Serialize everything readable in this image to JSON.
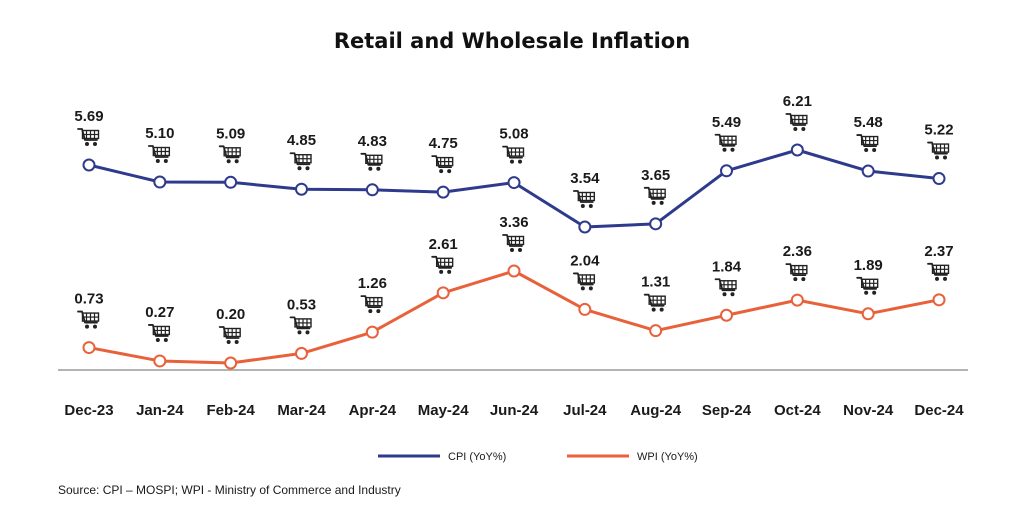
{
  "chart_data": {
    "type": "line",
    "title": "Retail and Wholesale Inflation",
    "categories": [
      "Dec-23",
      "Jan-24",
      "Feb-24",
      "Mar-24",
      "Apr-24",
      "May-24",
      "Jun-24",
      "Jul-24",
      "Aug-24",
      "Sep-24",
      "Oct-24",
      "Nov-24",
      "Dec-24"
    ],
    "series": [
      {
        "name": "CPI (YoY%)",
        "color": "#2e3a8c",
        "values": [
          5.69,
          5.1,
          5.09,
          4.85,
          4.83,
          4.75,
          5.08,
          3.54,
          3.65,
          5.49,
          6.21,
          5.48,
          5.22
        ],
        "labels": [
          "5.69",
          "5.10",
          "5.09",
          "4.85",
          "4.83",
          "4.75",
          "5.08",
          "3.54",
          "3.65",
          "5.49",
          "6.21",
          "5.48",
          "5.22"
        ]
      },
      {
        "name": "WPI (YoY%)",
        "color": "#e8613a",
        "values": [
          0.73,
          0.27,
          0.2,
          0.53,
          1.26,
          2.61,
          3.36,
          2.04,
          1.31,
          1.84,
          2.36,
          1.89,
          2.37
        ],
        "labels": [
          "0.73",
          "0.27",
          "0.20",
          "0.53",
          "1.26",
          "2.61",
          "3.36",
          "2.04",
          "1.31",
          "1.84",
          "2.36",
          "1.89",
          "2.37"
        ]
      }
    ],
    "xlabel": "",
    "ylabel": "",
    "grid": false,
    "legend": "bottom-center",
    "marker_icon": "shopping-cart-icon"
  },
  "source_text": "Source: CPI – MOSPI; WPI - Ministry of Commerce and Industry"
}
